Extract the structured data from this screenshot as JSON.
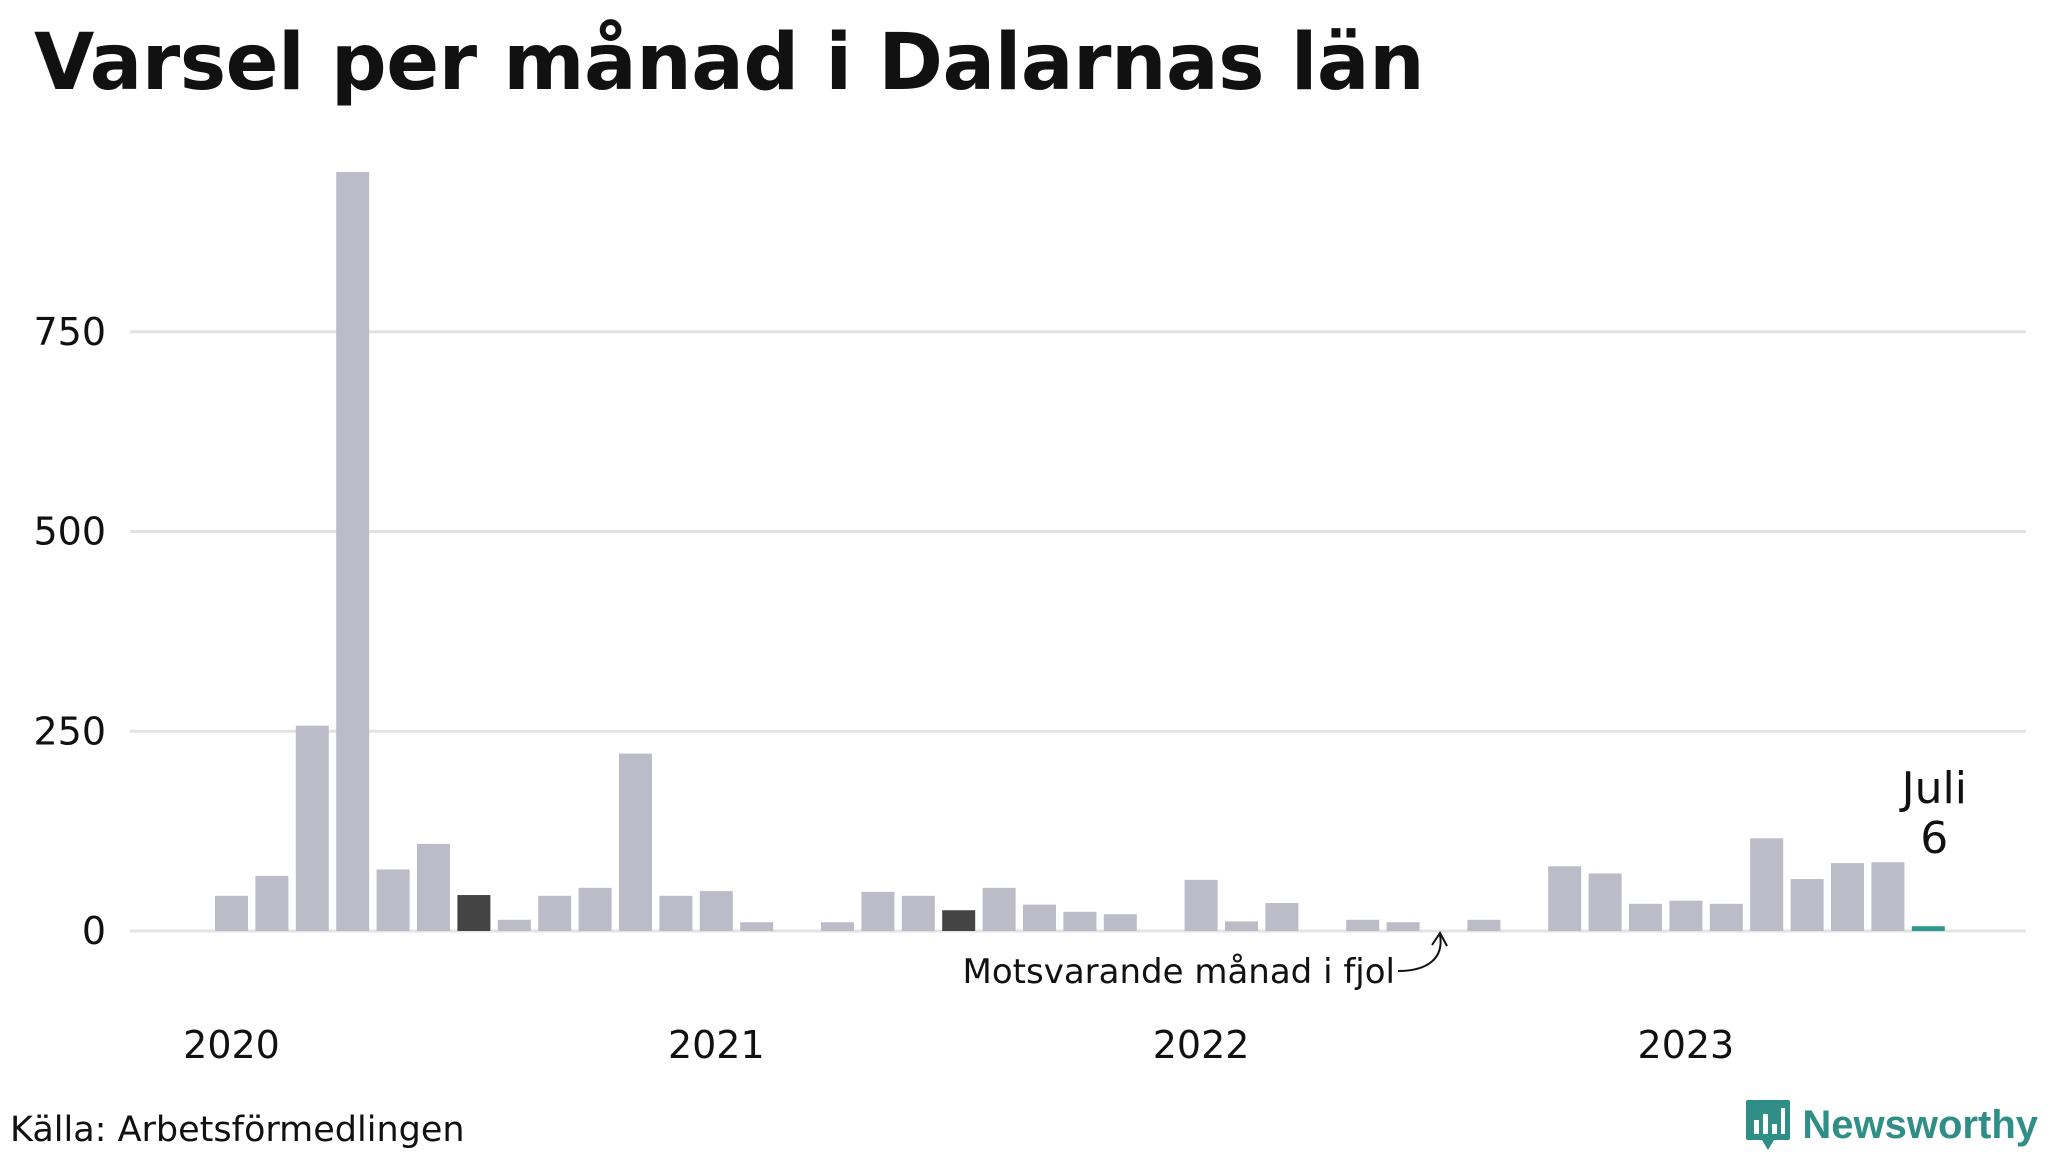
{
  "title": "Varsel per månad i Dalarnas län",
  "source": "Källa: Arbetsförmedlingen",
  "brand": {
    "name": "Newsworthy"
  },
  "colors": {
    "bar": "#bcbbc8",
    "highlight": "#444444",
    "current": "#2a9a8c",
    "grid": "#e3e3e3",
    "brand": "#2f8f86"
  },
  "chart_data": {
    "type": "bar",
    "start": "2020-01",
    "ylim": [
      0,
      950
    ],
    "yticks": [
      0,
      250,
      500,
      750
    ],
    "year_labels": [
      "2020",
      "2021",
      "2022",
      "2023"
    ],
    "values": [
      44,
      69,
      257,
      950,
      77,
      109,
      45,
      14,
      44,
      54,
      222,
      44,
      50,
      11,
      0,
      11,
      49,
      44,
      26,
      54,
      33,
      24,
      21,
      0,
      64,
      12,
      35,
      0,
      14,
      11,
      0,
      14,
      0,
      81,
      72,
      34,
      38,
      34,
      116,
      65,
      85,
      86,
      6
    ],
    "highlight_indices": [
      6,
      18
    ],
    "current_index": 42,
    "current_label": {
      "month": "Juli",
      "value": "6"
    },
    "annotation": "Motsvarande månad i fjol"
  }
}
